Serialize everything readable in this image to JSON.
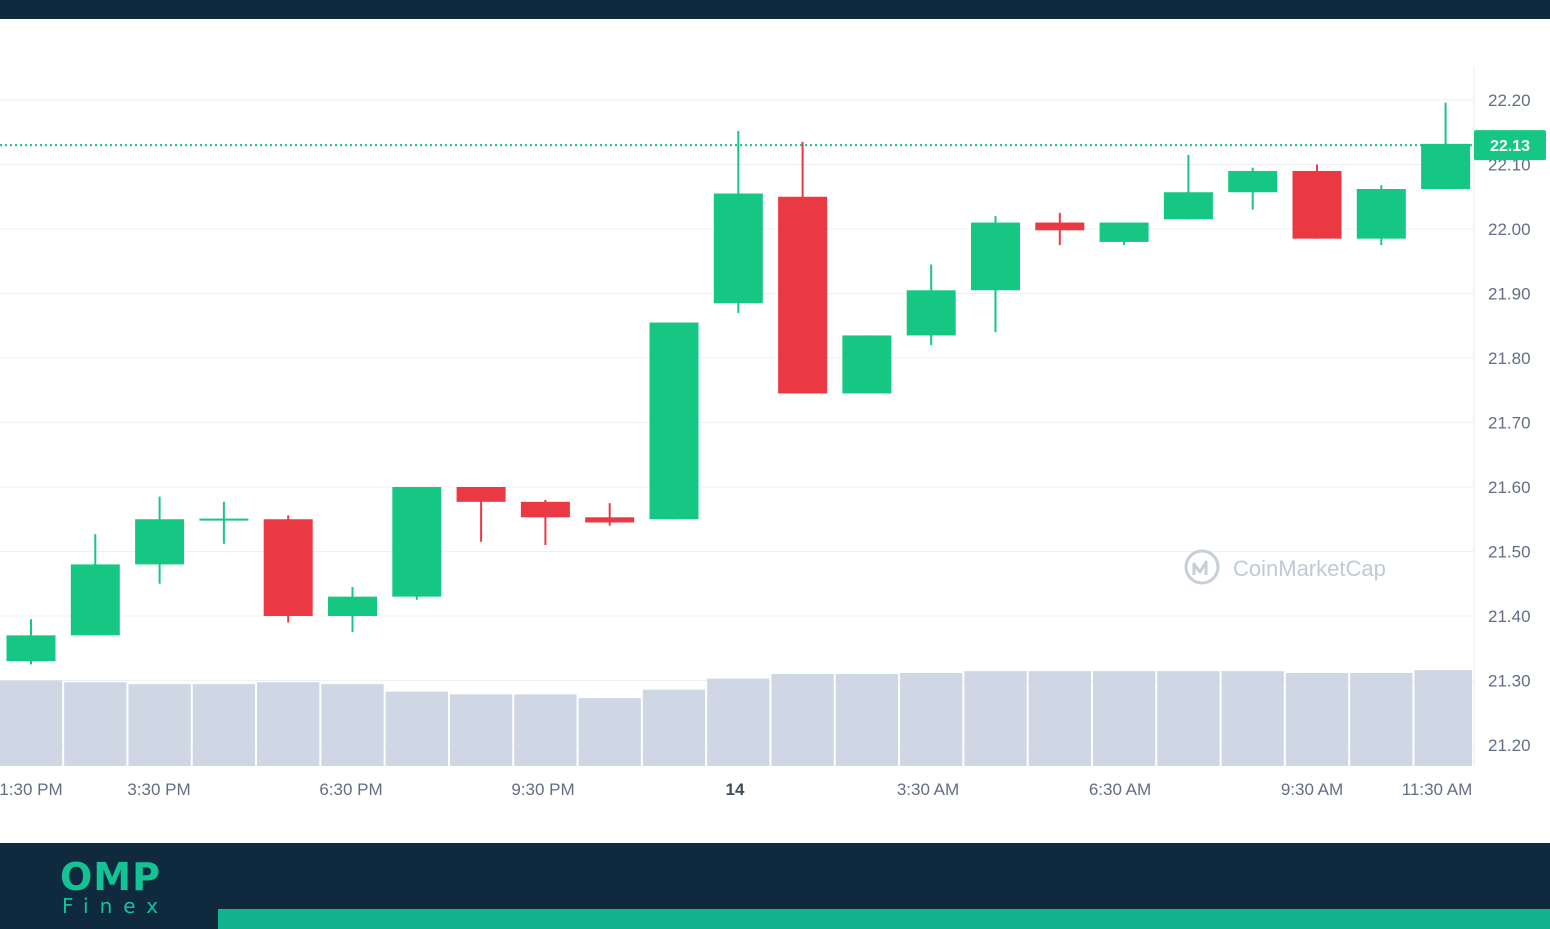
{
  "chart_data": {
    "type": "candlestick",
    "y_axis": {
      "range": [
        21.15,
        22.26
      ],
      "ticks": [
        "22.20",
        "22.10",
        "22.00",
        "21.90",
        "21.80",
        "21.70",
        "21.60",
        "21.50",
        "21.40",
        "21.30",
        "21.20"
      ]
    },
    "x_axis": {
      "ticks": [
        "1:30 PM",
        "3:30 PM",
        "6:30 PM",
        "9:30 PM",
        "14",
        "3:30 AM",
        "6:30 AM",
        "9:30 AM",
        "11:30 AM"
      ],
      "bold_tick": "14"
    },
    "current_price": "22.13",
    "watermark": "CoinMarketCap",
    "candles": [
      {
        "open": 21.33,
        "close": 21.37,
        "high": 21.395,
        "low": 21.325
      },
      {
        "open": 21.37,
        "close": 21.48,
        "high": 21.527,
        "low": 21.37
      },
      {
        "open": 21.48,
        "close": 21.55,
        "high": 21.585,
        "low": 21.45
      },
      {
        "open": 21.55,
        "close": 21.551,
        "high": 21.577,
        "low": 21.512
      },
      {
        "open": 21.55,
        "close": 21.4,
        "high": 21.556,
        "low": 21.39
      },
      {
        "open": 21.4,
        "close": 21.43,
        "high": 21.445,
        "low": 21.375
      },
      {
        "open": 21.43,
        "close": 21.6,
        "high": 21.6,
        "low": 21.425
      },
      {
        "open": 21.6,
        "close": 21.577,
        "high": 21.6,
        "low": 21.515
      },
      {
        "open": 21.577,
        "close": 21.553,
        "high": 21.58,
        "low": 21.51
      },
      {
        "open": 21.553,
        "close": 21.545,
        "high": 21.575,
        "low": 21.54
      },
      {
        "open": 21.55,
        "close": 21.855,
        "high": 21.855,
        "low": 21.55
      },
      {
        "open": 21.885,
        "close": 22.055,
        "high": 22.152,
        "low": 21.87
      },
      {
        "open": 22.05,
        "close": 21.745,
        "high": 22.135,
        "low": 21.745
      },
      {
        "open": 21.745,
        "close": 21.835,
        "high": 21.835,
        "low": 21.745
      },
      {
        "open": 21.835,
        "close": 21.905,
        "high": 21.945,
        "low": 21.82
      },
      {
        "open": 21.905,
        "close": 22.01,
        "high": 22.02,
        "low": 21.84
      },
      {
        "open": 22.01,
        "close": 21.998,
        "high": 22.025,
        "low": 21.975
      },
      {
        "open": 21.98,
        "close": 22.01,
        "high": 22.01,
        "low": 21.975
      },
      {
        "open": 22.015,
        "close": 22.057,
        "high": 22.115,
        "low": 22.015
      },
      {
        "open": 22.057,
        "close": 22.09,
        "high": 22.095,
        "low": 22.03
      },
      {
        "open": 22.09,
        "close": 21.985,
        "high": 22.1,
        "low": 21.985
      },
      {
        "open": 21.985,
        "close": 22.062,
        "high": 22.068,
        "low": 21.975
      },
      {
        "open": 22.062,
        "close": 22.132,
        "high": 22.196,
        "low": 22.062
      }
    ],
    "volume_bars": [
      0.92,
      0.9,
      0.88,
      0.88,
      0.9,
      0.88,
      0.8,
      0.77,
      0.77,
      0.73,
      0.82,
      0.94,
      0.99,
      0.99,
      1.0,
      1.02,
      1.02,
      1.02,
      1.02,
      1.02,
      1.0,
      1.0,
      1.03
    ],
    "colors": {
      "up": "#16c784",
      "down": "#ea3943",
      "volume": "#cfd6e4",
      "grid": "#eef0f3",
      "axis_text": "#616e85",
      "price_label_bg": "#16c784",
      "current_line": "#16c784"
    }
  },
  "footer": {
    "logo_main": "OMP",
    "logo_sub": "Finex",
    "colors": {
      "bar": "#0f2a3f",
      "accent": "#12b38e",
      "logo": "#13c393"
    }
  }
}
